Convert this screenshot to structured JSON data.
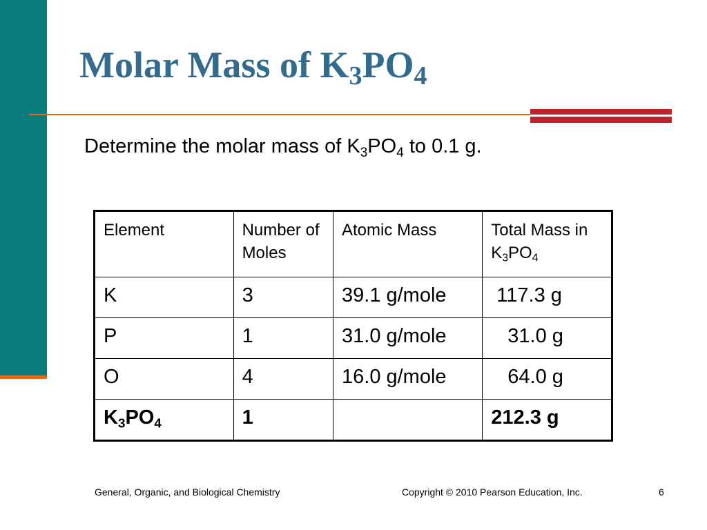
{
  "slide": {
    "title": {
      "text": "Molar Mass of K",
      "sub1": "3",
      "mid": "PO",
      "sub2": "4"
    },
    "question": {
      "text": "Determine the molar mass of K",
      "sub1": "3",
      "mid": "PO",
      "sub2": "4",
      "tail": " to 0.1 g."
    },
    "table": {
      "headers": {
        "element": "Element",
        "moles": "Number of Moles",
        "atomic": "Atomic Mass",
        "total_a": "Total Mass in K",
        "total_sub1": "3",
        "total_b": "PO",
        "total_sub2": "4"
      },
      "rows": [
        {
          "element": "K",
          "moles": "3",
          "atomic": "39.1 g/mole",
          "total": "117.3 g"
        },
        {
          "element": "P",
          "moles": "1",
          "atomic": "31.0 g/mole",
          "total": "31.0 g"
        },
        {
          "element": "O",
          "moles": "4",
          "atomic": "16.0 g/mole",
          "total": "64.0 g"
        }
      ],
      "total_row": {
        "el_a": "K",
        "el_sub1": "3",
        "el_b": "PO",
        "el_sub2": "4",
        "moles": "1",
        "atomic": "",
        "total": "212.3 g"
      }
    },
    "footer": {
      "left": "General, Organic, and Biological Chemistry",
      "center": "Copyright © 2010 Pearson Education, Inc.",
      "page": "6"
    },
    "colors": {
      "side_bar": "#0a7e7e",
      "accent_orange": "#e06a1a",
      "accent_red": "#c0242a",
      "title": "#336b8e"
    }
  }
}
